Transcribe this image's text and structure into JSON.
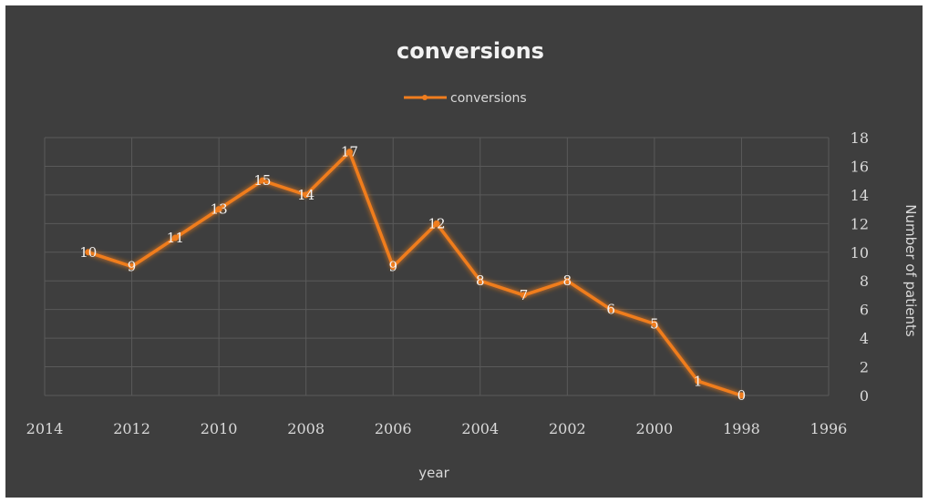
{
  "colors": {
    "background": "#3e3e3e",
    "series": "#f07d1e",
    "grid": "#5a5a5a",
    "text": "#d9d9d9"
  },
  "chart_data": {
    "type": "line",
    "title": "conversions",
    "xlabel": "year",
    "ylabel": "Number of patients",
    "legend": {
      "position": "top",
      "entries": [
        "conversions"
      ]
    },
    "x_reversed": true,
    "xlim": [
      1996,
      2014
    ],
    "x_ticks": [
      2014,
      2012,
      2010,
      2008,
      2006,
      2004,
      2002,
      2000,
      1998,
      1996
    ],
    "ylim": [
      0,
      18
    ],
    "y_ticks": [
      0,
      2,
      4,
      6,
      8,
      10,
      12,
      14,
      16,
      18
    ],
    "y_axis_side": "right",
    "grid": true,
    "series": [
      {
        "name": "conversions",
        "x": [
          2013,
          2012,
          2011,
          2010,
          2009,
          2008,
          2007,
          2006,
          2005,
          2004,
          2003,
          2002,
          2001,
          2000,
          1999,
          1998
        ],
        "values": [
          10,
          9,
          11,
          13,
          15,
          14,
          17,
          9,
          12,
          8,
          7,
          8,
          6,
          5,
          1,
          0
        ]
      }
    ]
  }
}
